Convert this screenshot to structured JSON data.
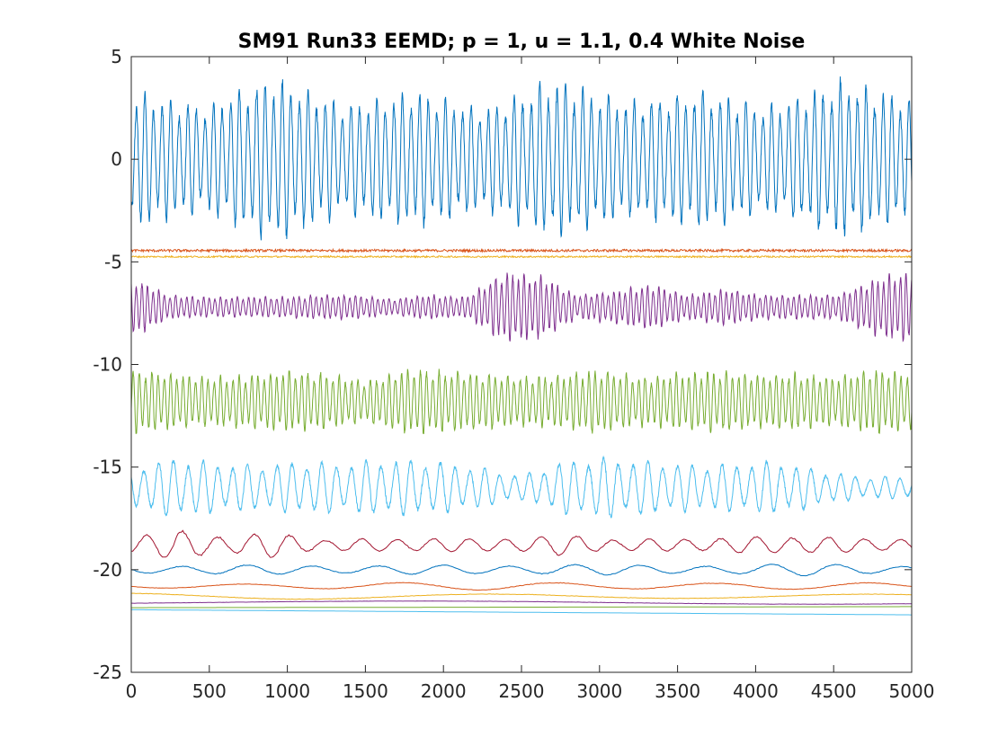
{
  "chart_data": {
    "type": "line",
    "title": "SM91 Run33 EEMD; p = 1, u = 1.1, 0.4 White Noise",
    "xlabel": "",
    "ylabel": "",
    "xlim": [
      0,
      5000
    ],
    "ylim": [
      -25,
      5
    ],
    "xticks": [
      0,
      500,
      1000,
      1500,
      2000,
      2500,
      3000,
      3500,
      4000,
      4500,
      5000
    ],
    "xtick_labels": [
      "0",
      "500",
      "1000",
      "1500",
      "2000",
      "2500",
      "3000",
      "3500",
      "4000",
      "4500",
      "5000"
    ],
    "yticks": [
      5,
      0,
      -5,
      -10,
      -15,
      -20,
      -25
    ],
    "ytick_labels": [
      "5",
      "0",
      "-5",
      "-10",
      "-15",
      "-20",
      "-25"
    ],
    "grid": false,
    "series": [
      {
        "color": "#0072BD",
        "offset": 0,
        "shape": {
          "kind": "osc",
          "period": 55,
          "amps": [
            3.3,
            2.6,
            4.0,
            2.7,
            3.3,
            2.5,
            3.9,
            2.8,
            3.4,
            2.6,
            3.8,
            3.0
          ]
        }
      },
      {
        "color": "#D95319",
        "offset": -4.45,
        "shape": {
          "kind": "noise",
          "amp": 0.06
        }
      },
      {
        "color": "#EDB120",
        "offset": -4.75,
        "shape": {
          "kind": "noise",
          "amp": 0.04
        }
      },
      {
        "color": "#7E2F8E",
        "offset": -7.2,
        "shape": {
          "kind": "osc",
          "period": 36,
          "amps": [
            1.5,
            0.6,
            0.5,
            0.5,
            0.5,
            0.6,
            0.6,
            0.4,
            0.6,
            0.5,
            1.7,
            1.6,
            0.6,
            0.8,
            1.1,
            0.6,
            0.9,
            0.6,
            0.6,
            0.6,
            1.4,
            1.8
          ]
        }
      },
      {
        "color": "#77AC30",
        "offset": -11.8,
        "shape": {
          "kind": "osc",
          "period": 40,
          "amps": [
            1.6,
            1.4,
            1.2,
            1.3,
            1.5,
            1.4,
            1.0,
            1.6,
            1.5,
            1.4,
            1.2,
            1.3,
            1.6,
            1.2,
            1.4,
            1.5,
            1.3,
            1.4,
            1.2,
            1.6,
            1.4
          ]
        }
      },
      {
        "color": "#4DBEEE",
        "offset": -16.0,
        "shape": {
          "kind": "osc",
          "period": 95,
          "amps": [
            1.0,
            1.5,
            1.2,
            1.1,
            1.3,
            1.2,
            1.4,
            1.3,
            1.0,
            0.6,
            1.3,
            1.5,
            1.3,
            1.1,
            1.2,
            1.3,
            0.8,
            0.5,
            0.6
          ]
        }
      },
      {
        "color": "#A2142F",
        "offset": -18.8,
        "shape": {
          "kind": "osc",
          "period": 230,
          "amps": [
            0.5,
            0.7,
            0.5,
            0.6,
            0.3,
            0.3,
            0.4,
            0.3,
            0.4,
            0.5,
            0.3,
            0.3,
            0.4,
            0.4,
            0.5,
            0.3,
            0.4
          ]
        }
      },
      {
        "color": "#0072BD",
        "offset": -20.0,
        "shape": {
          "kind": "osc",
          "period": 420,
          "amps": [
            0.2,
            0.25,
            0.2,
            0.25,
            0.2,
            0.3,
            0.2,
            0.25,
            0.3,
            0.2
          ]
        }
      },
      {
        "color": "#D95319",
        "offset": -20.8,
        "shape": {
          "kind": "osc",
          "period": 1000,
          "amps": [
            0.12,
            0.15,
            0.2,
            0.18,
            0.15
          ]
        }
      },
      {
        "color": "#EDB120",
        "offset": -21.3,
        "shape": {
          "kind": "osc",
          "period": 2400,
          "amps": [
            0.15,
            0.15,
            0.12
          ]
        }
      },
      {
        "color": "#7E2F8E",
        "offset": -21.6,
        "shape": {
          "kind": "osc",
          "period": 5200,
          "amps": [
            0.08,
            0.08
          ]
        }
      },
      {
        "color": "#77AC30",
        "offset": -21.85,
        "shape": {
          "kind": "trend",
          "from": 0.0,
          "to": 0.05
        }
      },
      {
        "color": "#4DBEEE",
        "offset": -22.0,
        "shape": {
          "kind": "trend",
          "from": 0.05,
          "to": -0.2
        }
      }
    ]
  }
}
